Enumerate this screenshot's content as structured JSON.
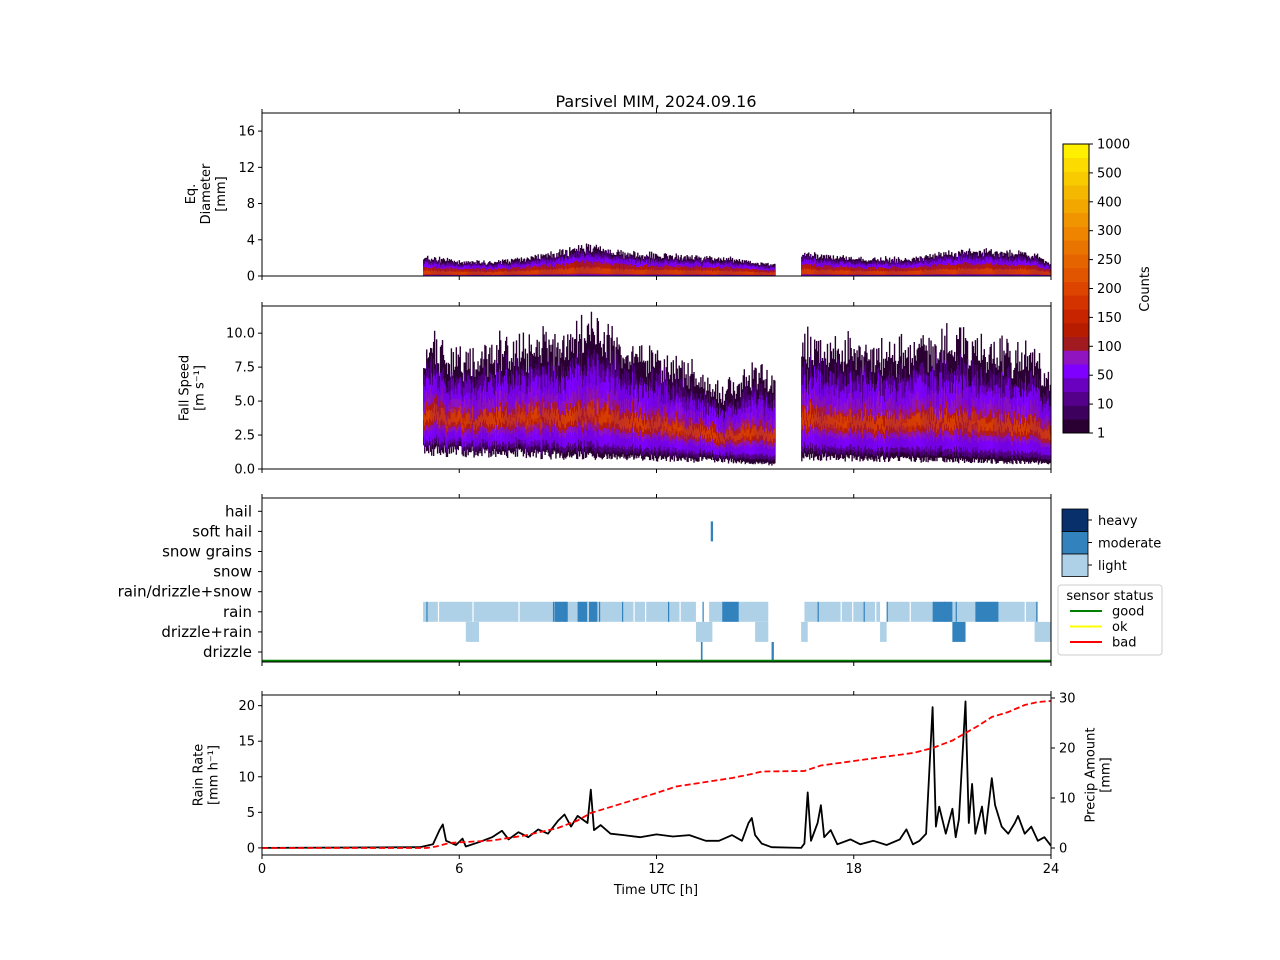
{
  "title": "Parsivel MIM, 2024.09.16",
  "colors": {
    "good": "#008000",
    "ok": "#ffff00",
    "bad": "#ff0000",
    "heavy": "#08306b",
    "moderate": "#3182bd",
    "light": "#aed1e8",
    "rain_rate": "#000000",
    "precip_amount": "#ff0000"
  },
  "chart_data": [
    {
      "type": "heatmap",
      "name": "diameter",
      "ylabel": [
        "Eq.",
        "Diameter",
        "[mm]"
      ],
      "ylim": [
        0,
        18
      ],
      "yticks": [
        "0",
        "4",
        "8",
        "12",
        "16"
      ],
      "xlim": [
        0,
        24
      ],
      "data_segments": [
        [
          4.9,
          15.6
        ],
        [
          16.4,
          24.0
        ]
      ],
      "top_envelope": [
        [
          5.0,
          2.0
        ],
        [
          6.0,
          1.6
        ],
        [
          7.0,
          1.5
        ],
        [
          8.0,
          1.9
        ],
        [
          9.0,
          2.6
        ],
        [
          10.0,
          3.2
        ],
        [
          11.0,
          2.4
        ],
        [
          12.0,
          2.3
        ],
        [
          13.0,
          2.0
        ],
        [
          14.0,
          1.9
        ],
        [
          15.0,
          1.5
        ],
        [
          15.5,
          1.2
        ],
        [
          16.5,
          2.6
        ],
        [
          17.5,
          2.0
        ],
        [
          18.5,
          1.9
        ],
        [
          19.5,
          1.8
        ],
        [
          20.5,
          2.4
        ],
        [
          21.5,
          2.8
        ],
        [
          22.5,
          2.5
        ],
        [
          23.5,
          2.3
        ],
        [
          24.0,
          1.2
        ]
      ]
    },
    {
      "type": "heatmap",
      "name": "fall-speed",
      "ylabel": [
        "Fall Speed",
        "[m s⁻¹]"
      ],
      "ylim": [
        0,
        12
      ],
      "yticks": [
        "0.0",
        "2.5",
        "5.0",
        "7.5",
        "10.0"
      ],
      "xlim": [
        0,
        24
      ],
      "data_segments": [
        [
          4.9,
          15.6
        ],
        [
          16.4,
          24.0
        ]
      ],
      "top_envelope": [
        [
          5.0,
          8.8
        ],
        [
          6.0,
          8.0
        ],
        [
          7.0,
          8.5
        ],
        [
          8.0,
          9.0
        ],
        [
          9.0,
          9.0
        ],
        [
          10.0,
          10.3
        ],
        [
          11.0,
          8.5
        ],
        [
          12.0,
          8.0
        ],
        [
          13.0,
          7.0
        ],
        [
          14.0,
          5.5
        ],
        [
          15.0,
          7.5
        ],
        [
          15.5,
          6.0
        ],
        [
          16.5,
          9.0
        ],
        [
          17.5,
          8.8
        ],
        [
          18.5,
          8.5
        ],
        [
          19.5,
          8.5
        ],
        [
          20.5,
          9.0
        ],
        [
          21.5,
          9.0
        ],
        [
          22.5,
          8.5
        ],
        [
          23.5,
          8.0
        ],
        [
          24.0,
          6.0
        ]
      ],
      "bottom_envelope": [
        [
          5.0,
          1.5
        ],
        [
          14.0,
          0.7
        ],
        [
          15.5,
          0.4
        ],
        [
          16.5,
          1.0
        ],
        [
          24.0,
          0.5
        ]
      ]
    },
    {
      "type": "table",
      "name": "precip-type",
      "categories": [
        "drizzle",
        "drizzle+rain",
        "rain",
        "rain/drizzle+snow",
        "snow",
        "snow grains",
        "soft hail",
        "hail"
      ],
      "xlim": [
        0,
        24
      ],
      "events": [
        {
          "cat": "rain",
          "x0": 4.9,
          "x1": 13.2,
          "level": "light"
        },
        {
          "cat": "rain",
          "x0": 8.9,
          "x1": 9.3,
          "level": "moderate"
        },
        {
          "cat": "rain",
          "x0": 9.6,
          "x1": 10.2,
          "level": "moderate"
        },
        {
          "cat": "rain",
          "x0": 13.6,
          "x1": 15.4,
          "level": "light"
        },
        {
          "cat": "rain",
          "x0": 14.0,
          "x1": 14.5,
          "level": "moderate"
        },
        {
          "cat": "rain",
          "x0": 16.5,
          "x1": 18.8,
          "level": "light"
        },
        {
          "cat": "rain",
          "x0": 19.0,
          "x1": 23.6,
          "level": "light"
        },
        {
          "cat": "rain",
          "x0": 20.4,
          "x1": 21.0,
          "level": "moderate"
        },
        {
          "cat": "rain",
          "x0": 21.7,
          "x1": 22.4,
          "level": "moderate"
        },
        {
          "cat": "drizzle+rain",
          "x0": 6.2,
          "x1": 6.6,
          "level": "light"
        },
        {
          "cat": "drizzle+rain",
          "x0": 13.2,
          "x1": 13.7,
          "level": "light"
        },
        {
          "cat": "drizzle+rain",
          "x0": 15.0,
          "x1": 15.4,
          "level": "light"
        },
        {
          "cat": "drizzle+rain",
          "x0": 16.4,
          "x1": 16.6,
          "level": "light"
        },
        {
          "cat": "drizzle+rain",
          "x0": 18.8,
          "x1": 19.0,
          "level": "light"
        },
        {
          "cat": "drizzle+rain",
          "x0": 21.0,
          "x1": 21.4,
          "level": "moderate"
        },
        {
          "cat": "drizzle+rain",
          "x0": 23.5,
          "x1": 24.0,
          "level": "light"
        },
        {
          "cat": "soft hail",
          "x0": 13.65,
          "x1": 13.72,
          "level": "moderate"
        },
        {
          "cat": "drizzle",
          "x0": 13.35,
          "x1": 13.4,
          "level": "moderate"
        },
        {
          "cat": "drizzle",
          "x0": 15.5,
          "x1": 15.57,
          "level": "moderate"
        }
      ],
      "sensor_status": "good",
      "level_legend": [
        "heavy",
        "moderate",
        "light"
      ],
      "status_legend": {
        "title": "sensor status",
        "items": [
          "good",
          "ok",
          "bad"
        ]
      }
    },
    {
      "type": "line",
      "name": "rain-rate",
      "xlabel": "Time UTC [h]",
      "xlim": [
        0,
        24
      ],
      "xticks": [
        "0",
        "6",
        "12",
        "18",
        "24"
      ],
      "ylabel": [
        "Rain Rate",
        "[mm h⁻¹]"
      ],
      "ylim": [
        -1,
        21.5
      ],
      "yticks": [
        "0",
        "5",
        "10",
        "15",
        "20"
      ],
      "y2label": [
        "Precip Amount",
        "[mm]"
      ],
      "y2lim": [
        -1.4,
        30.6
      ],
      "y2ticks": [
        "0",
        "10",
        "20",
        "30"
      ],
      "series": [
        {
          "role": "rain_rate",
          "style": "solid",
          "points": [
            [
              0,
              0
            ],
            [
              4.8,
              0.1
            ],
            [
              5.2,
              0.5
            ],
            [
              5.4,
              2.5
            ],
            [
              5.5,
              3.3
            ],
            [
              5.6,
              1.0
            ],
            [
              5.9,
              0.4
            ],
            [
              6.1,
              1.3
            ],
            [
              6.2,
              0.2
            ],
            [
              6.6,
              0.8
            ],
            [
              7.0,
              1.5
            ],
            [
              7.3,
              2.4
            ],
            [
              7.5,
              1.2
            ],
            [
              7.8,
              2.2
            ],
            [
              8.1,
              1.5
            ],
            [
              8.4,
              2.6
            ],
            [
              8.7,
              2.0
            ],
            [
              9.0,
              3.8
            ],
            [
              9.2,
              4.7
            ],
            [
              9.4,
              3.0
            ],
            [
              9.6,
              4.5
            ],
            [
              9.9,
              3.5
            ],
            [
              10.0,
              8.2
            ],
            [
              10.1,
              2.5
            ],
            [
              10.3,
              3.2
            ],
            [
              10.6,
              2.0
            ],
            [
              11.0,
              1.8
            ],
            [
              11.5,
              1.5
            ],
            [
              12.0,
              1.9
            ],
            [
              12.5,
              1.6
            ],
            [
              13.0,
              1.8
            ],
            [
              13.5,
              1.0
            ],
            [
              13.9,
              1.0
            ],
            [
              14.3,
              1.8
            ],
            [
              14.6,
              1.0
            ],
            [
              14.8,
              3.5
            ],
            [
              14.9,
              4.2
            ],
            [
              15.0,
              1.8
            ],
            [
              15.2,
              0.6
            ],
            [
              15.5,
              0.1
            ],
            [
              16.4,
              0.0
            ],
            [
              16.5,
              0.6
            ],
            [
              16.6,
              7.8
            ],
            [
              16.7,
              1.0
            ],
            [
              16.9,
              3.5
            ],
            [
              17.0,
              6.0
            ],
            [
              17.1,
              1.5
            ],
            [
              17.3,
              2.5
            ],
            [
              17.5,
              0.5
            ],
            [
              17.9,
              1.2
            ],
            [
              18.2,
              0.5
            ],
            [
              18.6,
              1.0
            ],
            [
              19.0,
              0.4
            ],
            [
              19.4,
              1.2
            ],
            [
              19.6,
              2.6
            ],
            [
              19.8,
              0.5
            ],
            [
              20.0,
              1.0
            ],
            [
              20.2,
              2.0
            ],
            [
              20.4,
              19.8
            ],
            [
              20.5,
              3.0
            ],
            [
              20.6,
              5.8
            ],
            [
              20.8,
              2.0
            ],
            [
              21.0,
              5.5
            ],
            [
              21.1,
              1.5
            ],
            [
              21.2,
              4.0
            ],
            [
              21.4,
              20.6
            ],
            [
              21.5,
              3.5
            ],
            [
              21.6,
              9.0
            ],
            [
              21.7,
              2.0
            ],
            [
              21.9,
              5.8
            ],
            [
              22.0,
              2.0
            ],
            [
              22.2,
              9.8
            ],
            [
              22.3,
              6.0
            ],
            [
              22.5,
              3.0
            ],
            [
              22.7,
              2.0
            ],
            [
              22.9,
              3.5
            ],
            [
              23.0,
              4.5
            ],
            [
              23.2,
              2.0
            ],
            [
              23.4,
              3.0
            ],
            [
              23.6,
              1.0
            ],
            [
              23.8,
              1.5
            ],
            [
              24.0,
              0.3
            ]
          ]
        },
        {
          "role": "precip_amount",
          "style": "dashed",
          "points": [
            [
              0,
              0
            ],
            [
              5.0,
              0
            ],
            [
              5.3,
              0.3
            ],
            [
              5.7,
              1.0
            ],
            [
              6.2,
              1.2
            ],
            [
              7.0,
              1.5
            ],
            [
              8.0,
              2.5
            ],
            [
              9.0,
              4.0
            ],
            [
              9.6,
              5.5
            ],
            [
              10.0,
              7.0
            ],
            [
              11.0,
              9.0
            ],
            [
              12.0,
              11.0
            ],
            [
              12.6,
              12.3
            ],
            [
              13.5,
              13.2
            ],
            [
              14.3,
              14.0
            ],
            [
              14.9,
              14.8
            ],
            [
              15.2,
              15.3
            ],
            [
              16.5,
              15.4
            ],
            [
              17.0,
              16.5
            ],
            [
              18.0,
              17.4
            ],
            [
              19.0,
              18.3
            ],
            [
              19.8,
              19.0
            ],
            [
              20.4,
              20.0
            ],
            [
              21.0,
              21.5
            ],
            [
              21.4,
              23.0
            ],
            [
              21.8,
              24.5
            ],
            [
              22.2,
              26.2
            ],
            [
              22.7,
              27.2
            ],
            [
              23.2,
              28.6
            ],
            [
              23.6,
              29.2
            ],
            [
              24.0,
              29.4
            ]
          ]
        }
      ]
    }
  ],
  "colorbar": {
    "label": "Counts",
    "ticks": [
      "1",
      "10",
      "50",
      "100",
      "150",
      "200",
      "250",
      "300",
      "400",
      "500",
      "1000"
    ]
  }
}
